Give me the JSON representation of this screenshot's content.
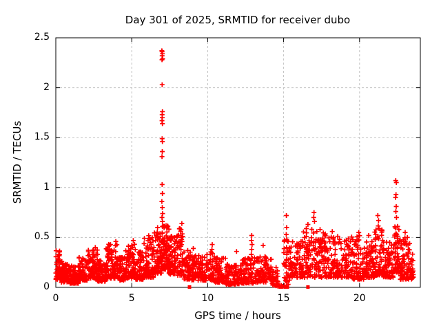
{
  "chart_data": {
    "type": "scatter",
    "title": "Day 301 of 2025, SRMTID for receiver dubo",
    "xlabel": "GPS time / hours",
    "ylabel": "SRMTID / TECUs",
    "xlim": [
      0,
      24
    ],
    "ylim": [
      0,
      2.5
    ],
    "xtick_values": [
      0,
      5,
      10,
      15,
      20
    ],
    "xtick_labels": [
      "0",
      "5",
      "10",
      "15",
      "20"
    ],
    "ytick_values": [
      0,
      0.5,
      1,
      1.5,
      2,
      2.5
    ],
    "ytick_labels": [
      "0",
      "0.5",
      "1",
      "1.5",
      "2",
      "2.5"
    ],
    "grid": true,
    "legend": "none",
    "marker": "plus",
    "marker_color": "#ff0000",
    "grid_color": "#c0c0c0",
    "axis_color": "#000000",
    "background": "#ffffff",
    "seed": 20251028,
    "envelope_bins": [
      [
        0.0,
        0.35,
        0.08,
        0.37,
        45
      ],
      [
        0.35,
        0.9,
        0.05,
        0.26,
        70
      ],
      [
        0.9,
        1.5,
        0.04,
        0.22,
        75
      ],
      [
        1.5,
        2.1,
        0.07,
        0.3,
        75
      ],
      [
        2.1,
        2.75,
        0.09,
        0.38,
        80
      ],
      [
        2.75,
        3.3,
        0.06,
        0.27,
        70
      ],
      [
        3.3,
        4.05,
        0.09,
        0.44,
        90
      ],
      [
        4.05,
        4.6,
        0.07,
        0.3,
        70
      ],
      [
        4.6,
        5.25,
        0.09,
        0.45,
        80
      ],
      [
        5.25,
        5.8,
        0.08,
        0.36,
        70
      ],
      [
        5.8,
        6.45,
        0.1,
        0.52,
        80
      ],
      [
        6.45,
        6.95,
        0.14,
        0.58,
        70
      ],
      [
        6.95,
        7.45,
        0.18,
        0.62,
        80
      ],
      [
        7.45,
        8.0,
        0.13,
        0.52,
        70
      ],
      [
        8.0,
        8.45,
        0.12,
        0.6,
        55
      ],
      [
        8.45,
        8.9,
        0.08,
        0.38,
        50
      ],
      [
        8.9,
        9.6,
        0.07,
        0.33,
        70
      ],
      [
        9.6,
        10.45,
        0.07,
        0.36,
        75
      ],
      [
        10.45,
        11.2,
        0.05,
        0.3,
        80
      ],
      [
        11.2,
        12.25,
        0.03,
        0.24,
        100
      ],
      [
        12.25,
        13.25,
        0.04,
        0.3,
        90
      ],
      [
        13.25,
        14.2,
        0.05,
        0.31,
        80
      ],
      [
        14.2,
        14.65,
        0.02,
        0.2,
        30
      ],
      [
        15.0,
        15.4,
        0.06,
        0.5,
        35
      ],
      [
        15.4,
        16.25,
        0.1,
        0.46,
        75
      ],
      [
        16.25,
        17.25,
        0.1,
        0.6,
        90
      ],
      [
        17.25,
        18.3,
        0.1,
        0.55,
        95
      ],
      [
        18.3,
        19.3,
        0.1,
        0.52,
        90
      ],
      [
        19.3,
        20.3,
        0.08,
        0.52,
        85
      ],
      [
        20.3,
        21.0,
        0.1,
        0.46,
        70
      ],
      [
        21.0,
        21.55,
        0.12,
        0.62,
        60
      ],
      [
        21.55,
        22.25,
        0.1,
        0.5,
        70
      ],
      [
        22.25,
        22.6,
        0.15,
        0.62,
        50
      ],
      [
        22.6,
        23.3,
        0.08,
        0.5,
        80
      ],
      [
        23.3,
        23.55,
        0.08,
        0.35,
        25
      ]
    ],
    "spike_points": [
      [
        6.98,
        2.37
      ],
      [
        7.0,
        2.36
      ],
      [
        7.02,
        2.34
      ],
      [
        7.0,
        2.32
      ],
      [
        7.03,
        2.29
      ],
      [
        6.99,
        2.28
      ],
      [
        7.0,
        2.03
      ],
      [
        7.02,
        1.76
      ],
      [
        7.0,
        1.73
      ],
      [
        7.01,
        1.7
      ],
      [
        6.99,
        1.67
      ],
      [
        7.02,
        1.64
      ],
      [
        7.0,
        1.49
      ],
      [
        7.02,
        1.46
      ],
      [
        7.01,
        1.36
      ],
      [
        6.99,
        1.31
      ],
      [
        7.0,
        1.03
      ],
      [
        7.02,
        0.94
      ],
      [
        6.98,
        0.86
      ],
      [
        7.01,
        0.8
      ],
      [
        7.03,
        0.74
      ],
      [
        6.99,
        0.7
      ],
      [
        7.02,
        0.66
      ],
      [
        12.9,
        0.52
      ],
      [
        12.88,
        0.47
      ],
      [
        12.92,
        0.43
      ],
      [
        12.9,
        0.38
      ],
      [
        12.87,
        0.33
      ],
      [
        15.18,
        0.72
      ],
      [
        15.2,
        0.6
      ],
      [
        15.17,
        0.53
      ],
      [
        15.22,
        0.47
      ],
      [
        15.19,
        0.4
      ],
      [
        15.21,
        0.33
      ],
      [
        17.0,
        0.75
      ],
      [
        16.98,
        0.7
      ],
      [
        17.03,
        0.66
      ],
      [
        21.2,
        0.72
      ],
      [
        21.25,
        0.67
      ],
      [
        22.38,
        1.07
      ],
      [
        22.42,
        1.05
      ],
      [
        22.4,
        0.93
      ],
      [
        22.37,
        0.9
      ],
      [
        22.41,
        0.81
      ],
      [
        22.39,
        0.76
      ],
      [
        22.43,
        0.7
      ],
      [
        14.45,
        0.02
      ],
      [
        14.5,
        0.015
      ],
      [
        14.57,
        0.03
      ],
      [
        14.63,
        0.01
      ],
      [
        14.7,
        0.02
      ],
      [
        14.76,
        0.015
      ],
      [
        14.85,
        0.02
      ],
      [
        14.93,
        0.01
      ],
      [
        15.05,
        0.02
      ],
      [
        15.3,
        0.03
      ],
      [
        10.3,
        0.43
      ],
      [
        10.28,
        0.38
      ],
      [
        11.9,
        0.36
      ],
      [
        9.05,
        0.39
      ],
      [
        13.65,
        0.42
      ],
      [
        8.3,
        0.64
      ],
      [
        8.25,
        0.58
      ],
      [
        5.1,
        0.47
      ],
      [
        3.95,
        0.46
      ],
      [
        2.6,
        0.4
      ],
      [
        6.7,
        0.6
      ],
      [
        19.95,
        0.55
      ],
      [
        18.2,
        0.56
      ],
      [
        20.6,
        0.52
      ],
      [
        23.0,
        0.55
      ],
      [
        16.6,
        0.63
      ],
      [
        17.4,
        0.58
      ]
    ],
    "zero_squares": [
      8.8,
      14.8,
      15.1,
      15.25,
      16.6
    ]
  }
}
